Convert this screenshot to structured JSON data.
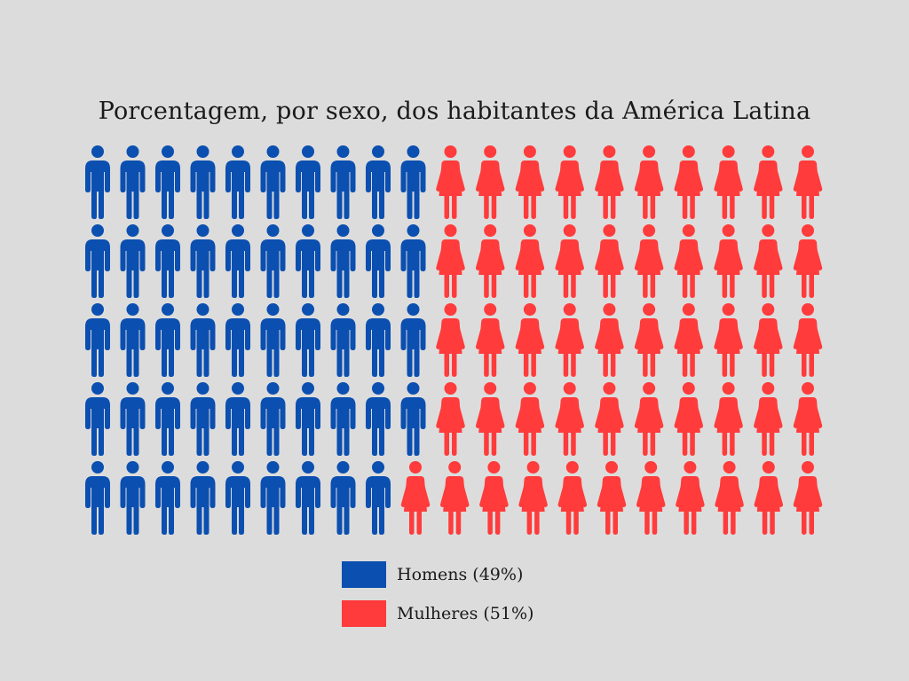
{
  "chart_data": {
    "type": "pictogram",
    "title": "Porcentagem, por sexo, dos habitantes da América Latina",
    "total_icons": 100,
    "rows": 5,
    "columns": 20,
    "series": [
      {
        "name": "Homens (49%)",
        "value": 49,
        "unit": "%",
        "icon": "man-icon",
        "color": "#0b4fb0"
      },
      {
        "name": "Mulheres (51%)",
        "value": 51,
        "unit": "%",
        "icon": "woman-icon",
        "color": "#ff3b3b"
      }
    ],
    "legend_position": "bottom-center"
  }
}
